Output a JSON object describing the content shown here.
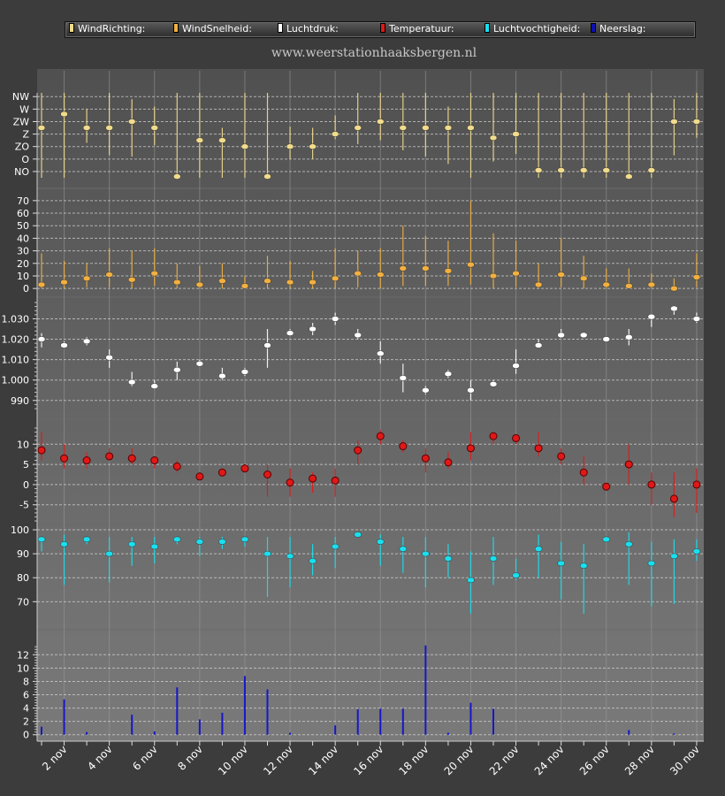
{
  "site_title": "www.weerstationhaaksbergen.nl",
  "legend": [
    {
      "label": "WindRichting:",
      "color": "#f2dc8c"
    },
    {
      "label": "WindSnelheid:",
      "color": "#f2b040"
    },
    {
      "label": "Luchtdruk:",
      "color": "#ffffff"
    },
    {
      "label": "Temperatuur:",
      "color": "#e01818"
    },
    {
      "label": "Luchtvochtigheid:",
      "color": "#18e0f0"
    },
    {
      "label": "Neerslag:",
      "color": "#1010b0"
    }
  ],
  "chart_data": {
    "type": "scatter",
    "days": [
      "1 nov",
      "2 nov",
      "3 nov",
      "4 nov",
      "5 nov",
      "6 nov",
      "7 nov",
      "8 nov",
      "9 nov",
      "10 nov",
      "11 nov",
      "12 nov",
      "13 nov",
      "14 nov",
      "15 nov",
      "16 nov",
      "17 nov",
      "18 nov",
      "19 nov",
      "20 nov",
      "21 nov",
      "22 nov",
      "23 nov",
      "24 nov",
      "25 nov",
      "26 nov",
      "27 nov",
      "28 nov",
      "29 nov",
      "30 nov"
    ],
    "x_tick_labels": [
      "2 nov",
      "4 nov",
      "6 nov",
      "8 nov",
      "10 nov",
      "12 nov",
      "14 nov",
      "16 nov",
      "18 nov",
      "20 nov",
      "22 nov",
      "24 nov",
      "26 nov",
      "28 nov",
      "30 nov"
    ],
    "panels": [
      {
        "name": "WindRichting",
        "color": "#f2dc8c",
        "ytick_labels": [
          "NO",
          "O",
          "ZO",
          "Z",
          "ZW",
          "W",
          "NW"
        ],
        "ylim": [
          0.5,
          7.3
        ],
        "values": [
          4.5,
          5.6,
          4.5,
          4.5,
          5.0,
          4.5,
          0.6,
          3.5,
          3.5,
          3.0,
          0.6,
          3.0,
          3.0,
          4.0,
          4.5,
          5.0,
          4.5,
          4.5,
          4.5,
          4.5,
          3.7,
          4.0,
          1.1,
          1.1,
          1.1,
          1.1,
          0.6,
          1.1,
          5.0,
          5.0
        ],
        "low": [
          0.5,
          0.5,
          3.3,
          2.3,
          2.2,
          3.1,
          0.4,
          0.5,
          0.5,
          0.5,
          0.5,
          2.0,
          2.0,
          3.6,
          3.2,
          3.5,
          2.7,
          2.2,
          1.6,
          0.5,
          1.8,
          2.4,
          0.5,
          0.5,
          0.5,
          0.5,
          0.5,
          0.5,
          2.3,
          3.7
        ],
        "high": [
          7.3,
          7.3,
          6.0,
          7.3,
          6.8,
          6.2,
          7.3,
          7.3,
          4.5,
          7.3,
          7.3,
          4.6,
          4.5,
          5.5,
          7.3,
          7.3,
          7.3,
          7.3,
          6.2,
          7.3,
          7.3,
          7.3,
          7.3,
          7.3,
          7.3,
          7.3,
          7.3,
          7.3,
          6.8,
          7.3
        ]
      },
      {
        "name": "WindSnelheid",
        "color": "#f2b040",
        "ytick_labels": [
          "0",
          "10",
          "20",
          "30",
          "40",
          "50",
          "60",
          "70"
        ],
        "ylim": [
          -2,
          72
        ],
        "values": [
          3,
          5,
          8,
          11,
          7,
          12,
          5,
          3,
          6,
          2,
          6,
          5,
          5,
          8,
          12,
          11,
          16,
          16,
          14,
          19,
          10,
          12,
          3,
          11,
          8,
          3,
          2,
          3,
          0,
          9
        ],
        "low": [
          0,
          0,
          1,
          1,
          0,
          2,
          0,
          0,
          0,
          0,
          0,
          0,
          0,
          0,
          1,
          0,
          2,
          2,
          2,
          3,
          0,
          1,
          0,
          1,
          0,
          0,
          0,
          0,
          0,
          1
        ],
        "high": [
          28,
          22,
          20,
          32,
          30,
          32,
          20,
          18,
          20,
          10,
          26,
          22,
          14,
          32,
          30,
          32,
          50,
          42,
          38,
          70,
          44,
          38,
          20,
          40,
          26,
          16,
          16,
          12,
          8,
          28
        ]
      },
      {
        "name": "Luchtdruk",
        "color": "#ffffff",
        "ytick_labels": [
          "990",
          "1.000",
          "1.010",
          "1.020",
          "1.030"
        ],
        "ylim": [
          986,
          1038
        ],
        "values": [
          1020,
          1017,
          1019,
          1011,
          999,
          997,
          1005,
          1008,
          1002,
          1004,
          1017,
          1023,
          1025,
          1030,
          1022,
          1013,
          1001,
          995,
          1003,
          995,
          998,
          1007,
          1017,
          1022,
          1022,
          1020,
          1021,
          1031,
          1035,
          1030
        ],
        "low": [
          1016,
          1016,
          1017,
          1006,
          997,
          996,
          1000,
          1007,
          1000,
          1002,
          1006,
          1022,
          1022,
          1027,
          1020,
          1008,
          994,
          993,
          1001,
          990,
          997,
          1003,
          1016,
          1021,
          1021,
          1019,
          1017,
          1026,
          1032,
          1028
        ],
        "high": [
          1023,
          1019,
          1021,
          1015,
          1004,
          1000,
          1009,
          1010,
          1006,
          1006,
          1025,
          1025,
          1028,
          1033,
          1025,
          1019,
          1008,
          997,
          1005,
          1000,
          1000,
          1015,
          1020,
          1025,
          1023,
          1021,
          1025,
          1032,
          1036,
          1033
        ]
      },
      {
        "name": "Temperatuur",
        "color": "#e01818",
        "ytick_labels": [
          "-5",
          "0",
          "5",
          "10"
        ],
        "ylim": [
          -9,
          14
        ],
        "values": [
          8.5,
          6.5,
          6.0,
          7.0,
          6.5,
          6.0,
          4.5,
          2.0,
          3.0,
          4.0,
          2.5,
          0.5,
          1.5,
          1.0,
          8.5,
          12.0,
          9.5,
          6.5,
          5.5,
          9.0,
          12.0,
          11.5,
          9.0,
          7.0,
          3.0,
          -0.5,
          5.0,
          0.0,
          -3.5,
          0.0
        ],
        "low": [
          6.0,
          4.0,
          4.0,
          6.0,
          5.0,
          4.0,
          3.0,
          1.0,
          2.0,
          3.0,
          -3.0,
          -3.0,
          -2.0,
          -3.0,
          5.0,
          10.0,
          8.0,
          3.0,
          4.0,
          6.0,
          10.0,
          10.0,
          7.0,
          5.0,
          0.0,
          -1.0,
          0.0,
          -5.0,
          -8.0,
          -7.0
        ],
        "high": [
          13.0,
          10.0,
          8.0,
          9.0,
          9.0,
          7.0,
          6.0,
          3.0,
          4.0,
          5.0,
          5.0,
          4.0,
          3.0,
          4.0,
          11.0,
          13.5,
          11.0,
          9.0,
          8.0,
          13.0,
          13.0,
          12.0,
          13.0,
          9.0,
          7.0,
          0.5,
          10.0,
          3.0,
          3.0,
          4.0
        ]
      },
      {
        "name": "Luchtvochtigheid",
        "color": "#18e0f0",
        "ytick_labels": [
          "70",
          "80",
          "90",
          "100"
        ],
        "ylim": [
          62,
          100
        ],
        "values": [
          96,
          94,
          96,
          90,
          94,
          93,
          96,
          95,
          95,
          96,
          90,
          89,
          87,
          93,
          98,
          95,
          92,
          90,
          88,
          79,
          88,
          81,
          92,
          86,
          85,
          96,
          94,
          86,
          89,
          91
        ],
        "low": [
          91,
          77,
          94,
          78,
          85,
          86,
          94,
          89,
          92,
          93,
          72,
          76,
          81,
          84,
          97,
          85,
          82,
          76,
          80,
          65,
          77,
          79,
          80,
          71,
          65,
          95,
          77,
          68,
          69,
          87
        ],
        "high": [
          97,
          98,
          97,
          97,
          97,
          97,
          97,
          97,
          97,
          97,
          97,
          97,
          94,
          97,
          99,
          98,
          97,
          97,
          94,
          91,
          97,
          88,
          98,
          95,
          94,
          97,
          99,
          95,
          96,
          96
        ]
      },
      {
        "name": "Neerslag",
        "color": "#1010b0",
        "ytick_labels": [
          "0",
          "2",
          "4",
          "6",
          "8",
          "10",
          "12"
        ],
        "ylim": [
          -0.3,
          13.5
        ],
        "values": [
          1.2,
          5.3,
          0.4,
          0.0,
          3.0,
          0.5,
          7.1,
          2.3,
          3.3,
          8.8,
          6.8,
          0.3,
          0.0,
          1.4,
          3.8,
          3.9,
          3.9,
          13.4,
          0.3,
          4.8,
          3.9,
          0.0,
          0.0,
          0.0,
          0.0,
          0.0,
          0.7,
          0.0,
          0.2,
          0.0
        ]
      }
    ]
  }
}
